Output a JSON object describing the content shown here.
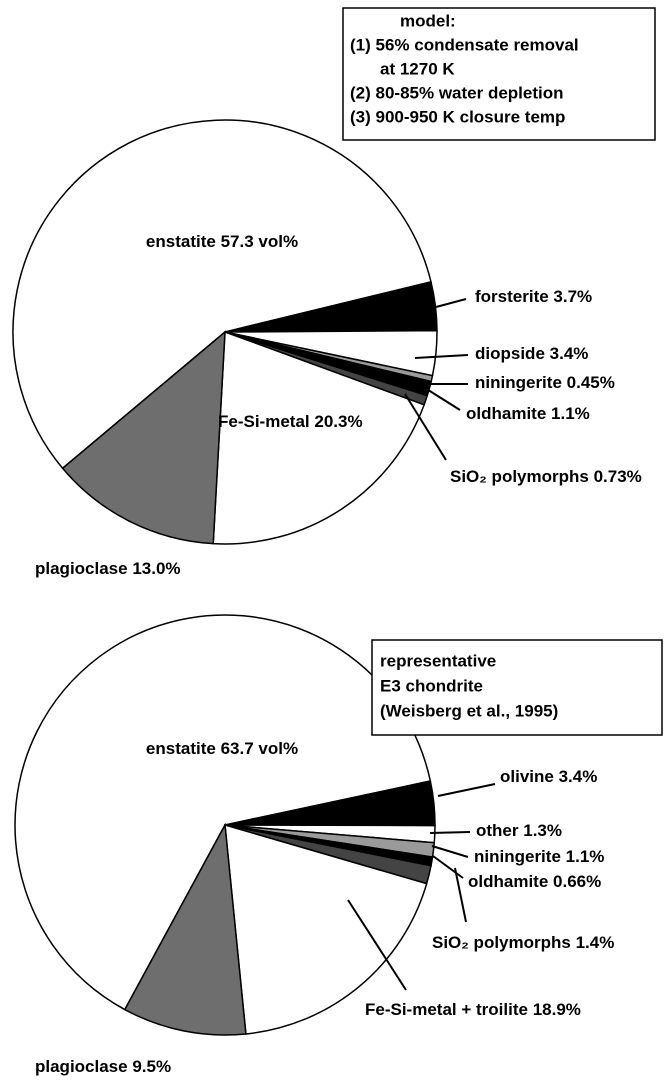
{
  "chart_data": [
    {
      "type": "pie",
      "box": [
        "model:",
        "(1) 56% condensate removal",
        "at 1270 K",
        "(2) 80-85% water depletion",
        "(3) 900-950 K closure temp"
      ],
      "categories": [
        "enstatite",
        "forsterite",
        "diopside",
        "niningerite",
        "oldhamite",
        "SiO₂ polymorphs",
        "Fe-Si-metal",
        "plagioclase"
      ],
      "values": [
        57.3,
        3.7,
        3.4,
        0.45,
        1.1,
        0.73,
        20.3,
        13.0
      ],
      "value_labels": [
        "57.3 vol%",
        "3.7%",
        "3.4%",
        "0.45%",
        "1.1%",
        "0.73%",
        "20.3%",
        "13.0%"
      ],
      "colors": [
        "#ffffff",
        "#000000",
        "#ffffff",
        "#9a9a9a",
        "#000000",
        "#444444",
        "#ffffff",
        "#6e6e6e"
      ]
    },
    {
      "type": "pie",
      "box": [
        "representative",
        "E3 chondrite",
        "(Weisberg et al., 1995)"
      ],
      "categories": [
        "enstatite",
        "olivine",
        "other",
        "niningerite",
        "oldhamite",
        "SiO₂ polymorphs",
        "Fe-Si-metal + troilite",
        "plagioclase"
      ],
      "values": [
        63.7,
        3.4,
        1.3,
        1.1,
        0.66,
        1.4,
        18.9,
        9.5
      ],
      "value_labels": [
        "63.7 vol%",
        "3.4%",
        "1.3%",
        "1.1%",
        "0.66%",
        "1.4%",
        "18.9%",
        "9.5%"
      ],
      "colors": [
        "#ffffff",
        "#000000",
        "#ffffff",
        "#9a9a9a",
        "#000000",
        "#444444",
        "#ffffff",
        "#6e6e6e"
      ]
    }
  ]
}
